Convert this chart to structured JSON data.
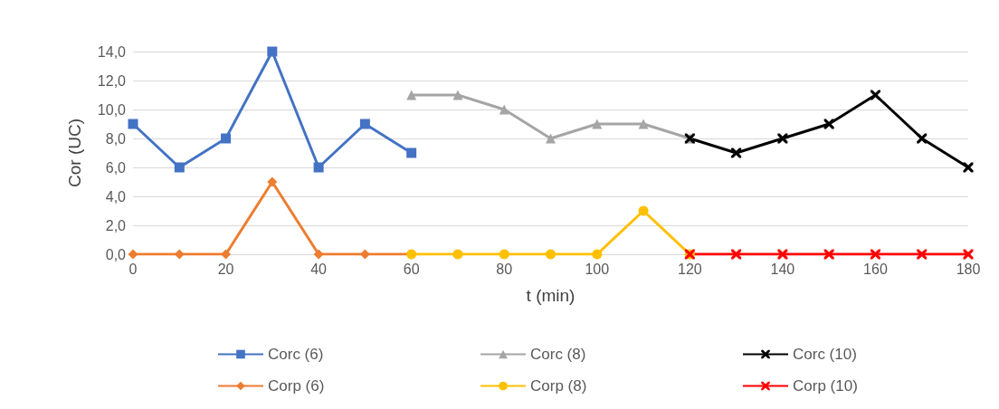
{
  "chart_data": {
    "type": "line",
    "xlabel": "t (min)",
    "ylabel": "Cor (UC)",
    "xlim": [
      0,
      180
    ],
    "xticks": [
      0,
      20,
      40,
      60,
      80,
      100,
      120,
      140,
      160,
      180
    ],
    "ylim": [
      0,
      14
    ],
    "yticks": [
      {
        "value": 0,
        "label": "0,0"
      },
      {
        "value": 2,
        "label": "2,0"
      },
      {
        "value": 4,
        "label": "4,0"
      },
      {
        "value": 6,
        "label": "6,0"
      },
      {
        "value": 8,
        "label": "8,0"
      },
      {
        "value": 10,
        "label": "10,0"
      },
      {
        "value": 12,
        "label": "12,0"
      },
      {
        "value": 14,
        "label": "14,0"
      }
    ],
    "grid": "y",
    "legend": "bottom",
    "line_style": "solid",
    "series": [
      {
        "name": "Corc (6)",
        "color": "#4472c4",
        "marker": "square",
        "x": [
          0,
          10,
          20,
          30,
          40,
          50,
          60
        ],
        "values": [
          9,
          6,
          8,
          14,
          6,
          9,
          7
        ]
      },
      {
        "name": "Corc (8)",
        "color": "#a5a5a5",
        "marker": "triangle",
        "x": [
          60,
          70,
          80,
          90,
          100,
          110,
          120
        ],
        "values": [
          11,
          11,
          10,
          8,
          9,
          9,
          8
        ]
      },
      {
        "name": "Corc (10)",
        "color": "#000000",
        "marker": "cross",
        "x": [
          120,
          130,
          140,
          150,
          160,
          170,
          180
        ],
        "values": [
          8,
          7,
          8,
          9,
          11,
          8,
          6
        ]
      },
      {
        "name": "Corp (6)",
        "color": "#ed7d31",
        "marker": "diamond",
        "x": [
          0,
          10,
          20,
          30,
          40,
          50,
          60
        ],
        "values": [
          0,
          0,
          0,
          5,
          0,
          0,
          0
        ]
      },
      {
        "name": "Corp (8)",
        "color": "#ffc000",
        "marker": "circle",
        "x": [
          60,
          70,
          80,
          90,
          100,
          110,
          120
        ],
        "values": [
          0,
          0,
          0,
          0,
          0,
          3,
          0
        ]
      },
      {
        "name": "Corp (10)",
        "color": "#ff0000",
        "marker": "cross",
        "x": [
          120,
          130,
          140,
          150,
          160,
          170,
          180
        ],
        "values": [
          0,
          0,
          0,
          0,
          0,
          0,
          0
        ]
      }
    ]
  }
}
